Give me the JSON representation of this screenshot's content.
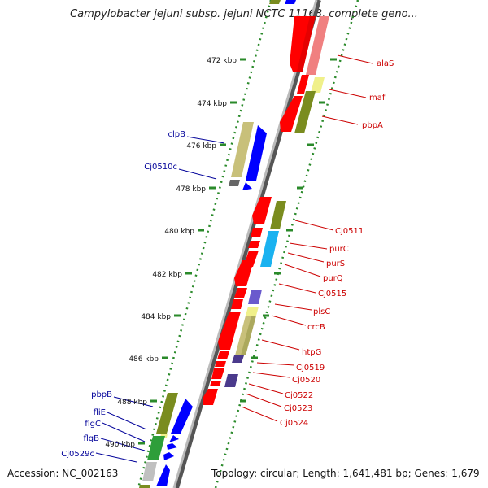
{
  "title": "Campylobacter jejuni subsp. jejuni NCTC 11168, complete geno...",
  "accession": "Accession: NC_002163",
  "topology": "Topology: circular; Length: 1,641,481 bp; Genes: 1,679",
  "ruler": [
    "472 kbp",
    "474 kbp",
    "476 kbp",
    "478 kbp",
    "480 kbp",
    "482 kbp",
    "484 kbp",
    "486 kbp",
    "488 kbp",
    "490 kbp"
  ],
  "genes_forward": [
    "alaS",
    "maf",
    "pbpA",
    "Cj0511",
    "purC",
    "purS",
    "purQ",
    "Cj0515",
    "plsC",
    "crcB",
    "htpG",
    "Cj0519",
    "Cj0520",
    "Cj0522",
    "Cj0523",
    "Cj0524"
  ],
  "genes_reverse": [
    "clpB",
    "Cj0510c",
    "pbpB",
    "fliE",
    "flgC",
    "flgB",
    "Cj0529c"
  ],
  "colors": {
    "forward_label": "#cc0000",
    "reverse_label": "#000099",
    "red_gene": "#ff0000",
    "blue_gene": "#0000ff",
    "olive_gene": "#7a8c1f",
    "khaki_gene": "#c8c07a",
    "pink_gene": "#f08080",
    "yellow_gene": "#f0f08a",
    "cyan_gene": "#1ab2f0",
    "purple_gene": "#6a5acd",
    "green_gene": "#2e9e3a",
    "backbone": "#808080",
    "tick_green": "#2a8a2a"
  }
}
